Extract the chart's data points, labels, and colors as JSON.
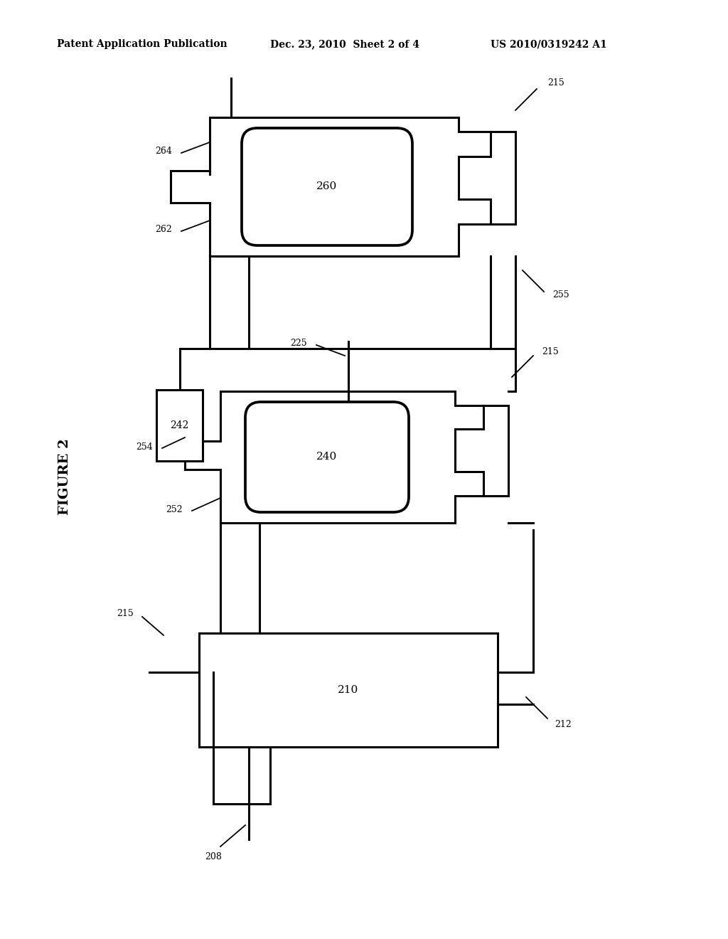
{
  "bg_color": "#ffffff",
  "header_text1": "Patent Application Publication",
  "header_text2": "Dec. 23, 2010  Sheet 2 of 4",
  "header_text3": "US 2010/0319242 A1",
  "figure_label": "FIGURE 2",
  "lw": 1.8,
  "lw_thick": 2.2,
  "lw_ann": 1.3,
  "fontsize_label": 11,
  "fontsize_ann": 9
}
